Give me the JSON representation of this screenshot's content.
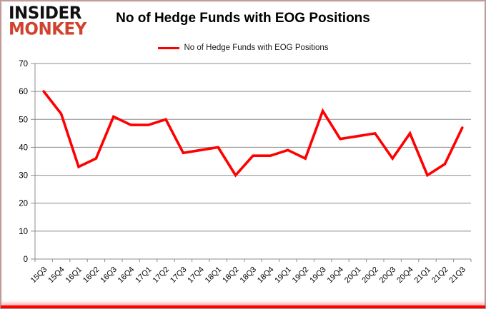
{
  "brand": {
    "line1": "INSIDER",
    "line2": "MONKEY",
    "line1_color": "#111111",
    "line2_color": "#d0422d"
  },
  "header": {
    "title": "No of Hedge Funds with EOG Positions"
  },
  "legend": {
    "label": "No of Hedge Funds with EOG Positions",
    "line_color": "#ff0000"
  },
  "chart_data": {
    "type": "line",
    "title": "No of Hedge Funds with EOG Positions",
    "categories": [
      "15Q3",
      "15Q4",
      "16Q1",
      "16Q2",
      "16Q3",
      "16Q4",
      "17Q1",
      "17Q2",
      "17Q3",
      "17Q4",
      "18Q1",
      "18Q2",
      "18Q3",
      "18Q4",
      "19Q1",
      "19Q2",
      "19Q3",
      "19Q4",
      "20Q1",
      "20Q2",
      "20Q3",
      "20Q4",
      "21Q1",
      "21Q2",
      "21Q3"
    ],
    "series": [
      {
        "name": "No of Hedge Funds with EOG Positions",
        "color": "#ff0000",
        "values": [
          60,
          52,
          33,
          36,
          51,
          48,
          48,
          50,
          38,
          39,
          40,
          30,
          37,
          37,
          39,
          36,
          53,
          43,
          44,
          45,
          36,
          45,
          30,
          34,
          47
        ]
      }
    ],
    "xlabel": "",
    "ylabel": "",
    "ylim": [
      0,
      70
    ],
    "yticks": [
      0,
      10,
      20,
      30,
      40,
      50,
      60,
      70
    ],
    "grid": "horizontal",
    "legend_position": "top"
  },
  "colors": {
    "grid": "#8c8c8c",
    "axis": "#8c8c8c",
    "tick_label": "#000000",
    "line": "#ff0000",
    "bottom_bar": "#fe0000"
  }
}
